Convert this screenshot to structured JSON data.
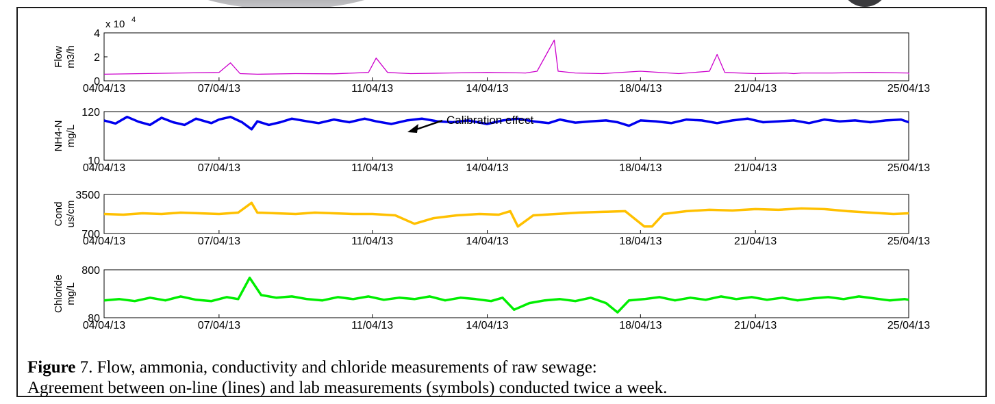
{
  "figure": {
    "caption_label": "Figure",
    "caption_number": "7",
    "caption_line1": ". Flow, ammonia, conductivity and chloride measurements of raw sewage:",
    "caption_line2": "Agreement between on-line (lines) and lab measurements (symbols) conducted twice a week."
  },
  "colors": {
    "flow": "#cc00cc",
    "nh4": "#0000ee",
    "cond": "#ffc000",
    "chloride": "#00ee00",
    "lab": "#ff0000"
  },
  "chart_data": [
    {
      "type": "line",
      "name": "flow",
      "ylabel": [
        "Flow",
        "m3/h"
      ],
      "multiplier_label": "x 10",
      "multiplier_exponent": "4",
      "ylim": [
        0,
        40000
      ],
      "yticks": [
        "0",
        "2",
        "4"
      ],
      "ytick_values": [
        0,
        20000,
        40000
      ],
      "xlim": [
        "2013-04-04",
        "2013-04-25"
      ],
      "xticks": [
        "04/04/13",
        "07/04/13",
        "11/04/13",
        "14/04/13",
        "18/04/13",
        "21/04/13",
        "25/04/13"
      ],
      "series": [
        {
          "values_x_days": [
            0,
            1,
            2,
            3,
            3.3,
            3.55,
            4,
            5,
            6,
            6.9,
            7.1,
            7.4,
            8,
            9,
            10,
            11,
            11.3,
            11.75,
            11.85,
            12.3,
            13,
            14,
            15,
            15.8,
            16,
            16.2,
            17,
            17.8,
            18,
            18.2,
            19,
            20,
            21,
            22,
            23,
            24,
            25,
            26,
            27,
            28,
            29,
            30
          ],
          "values_y": [
            5500,
            6000,
            6500,
            7000,
            15000,
            6000,
            5500,
            6000,
            5800,
            7000,
            19000,
            7000,
            6000,
            6500,
            7000,
            6500,
            8000,
            34000,
            8000,
            6500,
            6000,
            8000,
            6000,
            8000,
            22000,
            7000,
            6000,
            6500,
            6000,
            6500,
            6500,
            7000,
            6500,
            6000,
            6000,
            6500,
            6000,
            6000,
            6000,
            6000,
            5800,
            6000
          ]
        }
      ]
    },
    {
      "type": "line",
      "name": "nh4",
      "ylabel": [
        "NH4-N",
        "mg/L"
      ],
      "ylim": [
        10,
        120
      ],
      "yticks": [
        "10",
        "120"
      ],
      "ytick_values": [
        10,
        120
      ],
      "xlim": [
        "2013-04-04",
        "2013-04-25"
      ],
      "xticks": [
        "04/04/13",
        "07/04/13",
        "11/04/13",
        "14/04/13",
        "18/04/13",
        "21/04/13",
        "25/04/13"
      ],
      "annotation": {
        "text": "Calibration effect",
        "x_days": 7.2,
        "y": 62
      },
      "series": [
        {
          "values_x_days": [
            0,
            0.3,
            0.6,
            0.9,
            1.2,
            1.5,
            1.8,
            2.1,
            2.4,
            2.8,
            3.0,
            3.3,
            3.6,
            3.85,
            4.0,
            4.3,
            4.6,
            4.9,
            5.3,
            5.6,
            6.0,
            6.4,
            6.8,
            7.1,
            7.5,
            7.9,
            8.3,
            8.7,
            9.1,
            9.5,
            10.0,
            10.4,
            10.8,
            11.2,
            11.6,
            11.9,
            12.3,
            12.7,
            13.1,
            13.4,
            13.7,
            14.0,
            14.4,
            14.8,
            15.2,
            15.6,
            16.0,
            16.4,
            16.8,
            17.2,
            17.6,
            18.0,
            18.4,
            18.8,
            19.2,
            19.6,
            20.0,
            20.4,
            20.8,
            21.2
          ],
          "values_y": [
            100,
            93,
            108,
            97,
            90,
            106,
            96,
            90,
            104,
            94,
            102,
            108,
            96,
            80,
            98,
            90,
            96,
            104,
            98,
            94,
            102,
            96,
            104,
            98,
            92,
            100,
            104,
            98,
            96,
            100,
            92,
            100,
            104,
            98,
            94,
            102,
            95,
            98,
            100,
            96,
            88,
            100,
            98,
            94,
            102,
            100,
            94,
            100,
            104,
            96,
            98,
            100,
            94,
            102,
            98,
            100,
            96,
            100,
            102,
            96
          ]
        }
      ]
    },
    {
      "type": "line",
      "name": "cond",
      "ylabel": [
        "Cond",
        "us/cm"
      ],
      "ylim": [
        700,
        3500
      ],
      "yticks": [
        "700",
        "3500"
      ],
      "ytick_values": [
        700,
        3500
      ],
      "xlim": [
        "2013-04-04",
        "2013-04-25"
      ],
      "xticks": [
        "04/04/13",
        "07/04/13",
        "11/04/13",
        "14/04/13",
        "18/04/13",
        "21/04/13",
        "25/04/13"
      ],
      "series": [
        {
          "values_x_days": [
            0,
            0.5,
            1,
            1.5,
            2,
            2.5,
            3,
            3.5,
            3.85,
            4.0,
            4.5,
            5,
            5.5,
            6,
            6.5,
            7,
            7.6,
            8.1,
            8.6,
            9.2,
            9.8,
            10.3,
            10.6,
            10.8,
            11.2,
            11.8,
            12.4,
            13,
            13.6,
            14.1,
            14.3,
            14.6,
            15.2,
            15.8,
            16.4,
            17,
            17.6,
            18.2,
            18.8,
            19.4,
            20,
            20.6,
            21
          ],
          "values_y": [
            2100,
            2050,
            2150,
            2100,
            2200,
            2150,
            2100,
            2200,
            2900,
            2200,
            2150,
            2100,
            2200,
            2150,
            2100,
            2100,
            2000,
            1400,
            1800,
            2000,
            2100,
            2050,
            2300,
            1200,
            2000,
            2100,
            2200,
            2250,
            2300,
            1200,
            1200,
            2100,
            2300,
            2400,
            2350,
            2450,
            2400,
            2500,
            2450,
            2300,
            2200,
            2100,
            2150
          ]
        }
      ]
    },
    {
      "type": "line",
      "name": "chloride",
      "ylabel": [
        "Chloride",
        "mg/L"
      ],
      "ylim": [
        80,
        800
      ],
      "yticks": [
        "80",
        "800"
      ],
      "ytick_values": [
        80,
        800
      ],
      "xlim": [
        "2013-04-04",
        "2013-04-25"
      ],
      "xticks": [
        "04/04/13",
        "07/04/13",
        "11/04/13",
        "14/04/13",
        "18/04/13",
        "21/04/13",
        "25/04/13"
      ],
      "series": [
        {
          "values_x_days": [
            0,
            0.4,
            0.8,
            1.2,
            1.6,
            2.0,
            2.4,
            2.8,
            3.2,
            3.5,
            3.8,
            4.1,
            4.5,
            4.9,
            5.3,
            5.7,
            6.1,
            6.5,
            6.9,
            7.3,
            7.7,
            8.1,
            8.5,
            8.9,
            9.3,
            9.7,
            10.1,
            10.4,
            10.7,
            11.1,
            11.5,
            11.9,
            12.3,
            12.7,
            13.1,
            13.4,
            13.7,
            14.1,
            14.5,
            14.9,
            15.3,
            15.7,
            16.1,
            16.5,
            16.9,
            17.3,
            17.7,
            18.1,
            18.5,
            18.9,
            19.3,
            19.7,
            20.1,
            20.5,
            20.9,
            21
          ],
          "values_y": [
            340,
            360,
            330,
            380,
            340,
            400,
            350,
            330,
            390,
            360,
            680,
            420,
            380,
            400,
            360,
            340,
            390,
            360,
            400,
            350,
            380,
            360,
            400,
            340,
            380,
            360,
            330,
            380,
            200,
            300,
            340,
            360,
            330,
            380,
            300,
            160,
            340,
            360,
            390,
            340,
            380,
            350,
            400,
            360,
            390,
            350,
            380,
            340,
            370,
            390,
            360,
            400,
            370,
            340,
            360,
            350
          ]
        }
      ]
    }
  ]
}
